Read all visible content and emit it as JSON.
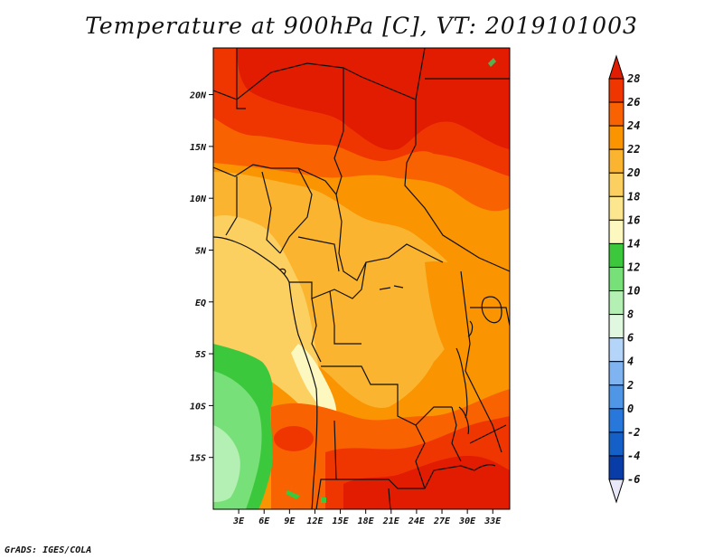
{
  "title": "Temperature at 900hPa [C], VT: 2019101003",
  "credit": "GrADS: IGES/COLA",
  "map": {
    "lat_labels": [
      {
        "label": "20N",
        "lat": 20
      },
      {
        "label": "15N",
        "lat": 15
      },
      {
        "label": "10N",
        "lat": 10
      },
      {
        "label": "5N",
        "lat": 5
      },
      {
        "label": "EQ",
        "lat": 0
      },
      {
        "label": "5S",
        "lat": -5
      },
      {
        "label": "10S",
        "lat": -10
      },
      {
        "label": "15S",
        "lat": -15
      }
    ],
    "lon_labels": [
      {
        "label": "3E",
        "lon": 3
      },
      {
        "label": "6E",
        "lon": 6
      },
      {
        "label": "9E",
        "lon": 9
      },
      {
        "label": "12E",
        "lon": 12
      },
      {
        "label": "15E",
        "lon": 15
      },
      {
        "label": "18E",
        "lon": 18
      },
      {
        "label": "21E",
        "lon": 21
      },
      {
        "label": "24E",
        "lon": 24
      },
      {
        "label": "27E",
        "lon": 27
      },
      {
        "label": "30E",
        "lon": 30
      },
      {
        "label": "33E",
        "lon": 33
      }
    ],
    "lon_range": [
      0,
      35
    ],
    "lat_range": [
      -20,
      24.5
    ]
  },
  "colorbar": {
    "levels": [
      "28",
      "26",
      "24",
      "22",
      "20",
      "18",
      "16",
      "14",
      "12",
      "10",
      "8",
      "6",
      "4",
      "2",
      "0",
      "-2",
      "-4",
      "-6"
    ],
    "bins": [
      {
        "range": ">28",
        "color": "#e11c00"
      },
      {
        "range": "26-28",
        "color": "#f03600"
      },
      {
        "range": "24-26",
        "color": "#f86200"
      },
      {
        "range": "22-24",
        "color": "#fa9400"
      },
      {
        "range": "20-22",
        "color": "#fbb430"
      },
      {
        "range": "18-20",
        "color": "#fcd060"
      },
      {
        "range": "16-18",
        "color": "#fde690"
      },
      {
        "range": "14-16",
        "color": "#fdf8c0"
      },
      {
        "range": "12-14",
        "color": "#3cc83c"
      },
      {
        "range": "10-12",
        "color": "#78e078"
      },
      {
        "range": "8-10",
        "color": "#b4f0b4"
      },
      {
        "range": "6-8",
        "color": "#e0f8e0"
      },
      {
        "range": "4-6",
        "color": "#b4d4f8"
      },
      {
        "range": "2-4",
        "color": "#80b4f0"
      },
      {
        "range": "0-2",
        "color": "#5096e6"
      },
      {
        "range": "-2-0",
        "color": "#2878dc"
      },
      {
        "range": "-4--2",
        "color": "#1460c8"
      },
      {
        "range": "-6--4",
        "color": "#0a3ca8"
      },
      {
        "range": "<-6",
        "color": "#0a0a6e"
      }
    ]
  }
}
